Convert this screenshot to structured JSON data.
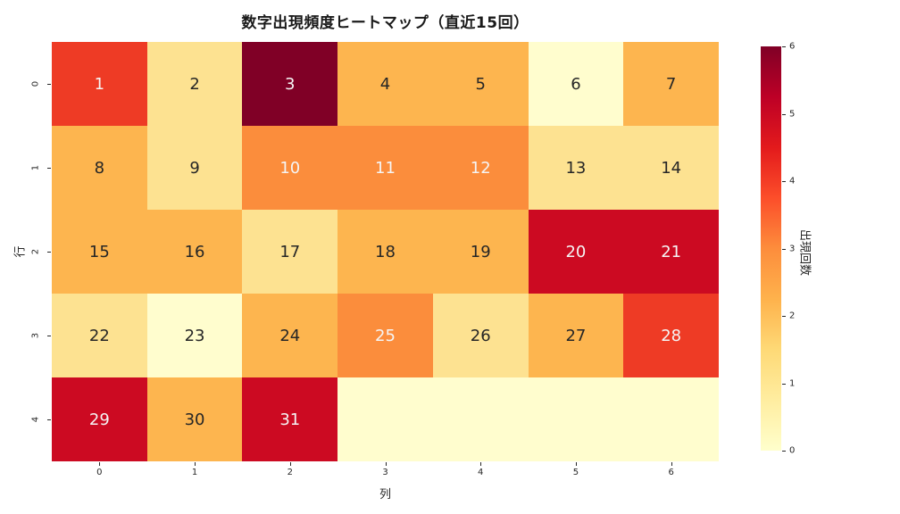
{
  "title": "数字出現頻度ヒートマップ（直近15回）",
  "chart_data": {
    "type": "heatmap",
    "title": "数字出現頻度ヒートマップ（直近15回）",
    "xlabel": "列",
    "ylabel": "行",
    "x_ticks": [
      "0",
      "1",
      "2",
      "3",
      "4",
      "5",
      "6"
    ],
    "y_ticks": [
      "0",
      "1",
      "2",
      "3",
      "4"
    ],
    "colorbar": {
      "label": "出現回数",
      "ticks": [
        "0",
        "1",
        "2",
        "3",
        "4",
        "5",
        "6"
      ],
      "min": 0,
      "max": 6,
      "colormap": "YlOrRd",
      "gradient_stops": [
        "#ffffcc",
        "#ffeda0",
        "#fed976",
        "#feb24c",
        "#fd8d3c",
        "#fc4e2a",
        "#e31a1c",
        "#bd0026",
        "#800026"
      ]
    },
    "value_colors": {
      "0": "#fffdce",
      "1": "#fde291",
      "2": "#fdb54f",
      "3": "#fb8d3c",
      "4": "#ee3b25",
      "5": "#cc0a22",
      "6": "#800026"
    },
    "text_colors": {
      "dark": "#262626",
      "light": "#f5f5f5"
    },
    "white_text_threshold": 3,
    "grid": [
      [
        {
          "label": "1",
          "count": 4
        },
        {
          "label": "2",
          "count": 1
        },
        {
          "label": "3",
          "count": 6
        },
        {
          "label": "4",
          "count": 2
        },
        {
          "label": "5",
          "count": 2
        },
        {
          "label": "6",
          "count": 0
        },
        {
          "label": "7",
          "count": 2
        }
      ],
      [
        {
          "label": "8",
          "count": 2
        },
        {
          "label": "9",
          "count": 1
        },
        {
          "label": "10",
          "count": 3
        },
        {
          "label": "11",
          "count": 3
        },
        {
          "label": "12",
          "count": 3
        },
        {
          "label": "13",
          "count": 1
        },
        {
          "label": "14",
          "count": 1
        }
      ],
      [
        {
          "label": "15",
          "count": 2
        },
        {
          "label": "16",
          "count": 2
        },
        {
          "label": "17",
          "count": 1
        },
        {
          "label": "18",
          "count": 2
        },
        {
          "label": "19",
          "count": 2
        },
        {
          "label": "20",
          "count": 5
        },
        {
          "label": "21",
          "count": 5
        }
      ],
      [
        {
          "label": "22",
          "count": 1
        },
        {
          "label": "23",
          "count": 0
        },
        {
          "label": "24",
          "count": 2
        },
        {
          "label": "25",
          "count": 3
        },
        {
          "label": "26",
          "count": 1
        },
        {
          "label": "27",
          "count": 2
        },
        {
          "label": "28",
          "count": 4
        }
      ],
      [
        {
          "label": "29",
          "count": 5
        },
        {
          "label": "30",
          "count": 2
        },
        {
          "label": "31",
          "count": 5
        },
        {
          "label": "",
          "count": null
        },
        {
          "label": "",
          "count": null
        },
        {
          "label": "",
          "count": null
        },
        {
          "label": "",
          "count": null
        }
      ]
    ]
  }
}
